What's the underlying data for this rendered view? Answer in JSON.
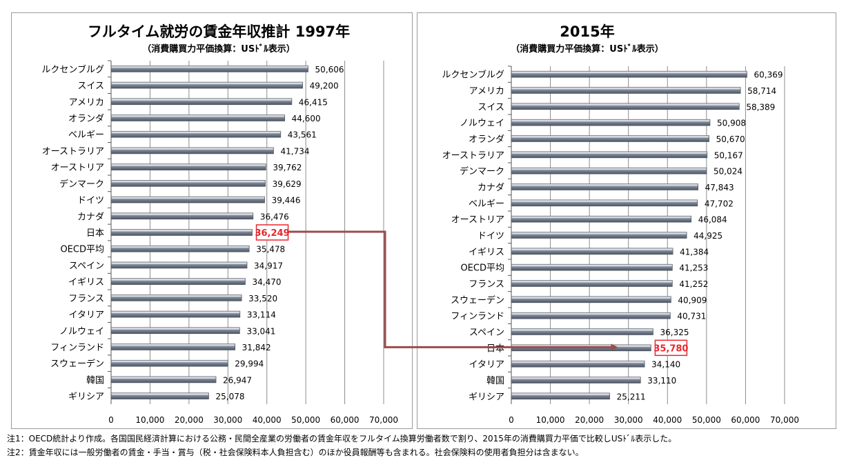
{
  "chart_data": [
    {
      "type": "bar",
      "orientation": "horizontal",
      "title": "フルタイム就労の賃金年収推計 1997年",
      "subtitle": "（消費購買力平価換算：USﾄﾞﾙ表示）",
      "categories": [
        "ルクセンブルグ",
        "スイス",
        "アメリカ",
        "オランダ",
        "ベルギー",
        "オーストラリア",
        "オーストリア",
        "デンマーク",
        "ドイツ",
        "カナダ",
        "日本",
        "OECD平均",
        "スペイン",
        "イギリス",
        "フランス",
        "イタリア",
        "ノルウェイ",
        "フィンランド",
        "スウェーデン",
        "韓国",
        "ギリシア"
      ],
      "values": [
        50606,
        49200,
        46415,
        44600,
        43561,
        41734,
        39762,
        39629,
        39446,
        36476,
        36249,
        35478,
        34917,
        34470,
        33520,
        33114,
        33041,
        31842,
        29994,
        26947,
        25078
      ],
      "value_labels": [
        "50,606",
        "49,200",
        "46,415",
        "44,600",
        "43,561",
        "41,734",
        "39,762",
        "39,629",
        "39,446",
        "36,476",
        "36,249",
        "35,478",
        "34,917",
        "34,470",
        "33,520",
        "33,114",
        "33,041",
        "31,842",
        "29,994",
        "26,947",
        "25,078"
      ],
      "highlight": "日本",
      "xlim": [
        0,
        70000
      ],
      "xticks": [
        "0",
        "10,000",
        "20,000",
        "30,000",
        "40,000",
        "50,000",
        "60,000",
        "70,000"
      ],
      "grid": true
    },
    {
      "type": "bar",
      "orientation": "horizontal",
      "title": "2015年",
      "subtitle": "（消費購買力平価換算：USﾄﾞﾙ表示）",
      "categories": [
        "ルクセンブルグ",
        "アメリカ",
        "スイス",
        "ノルウェイ",
        "オランダ",
        "オーストラリア",
        "デンマーク",
        "カナダ",
        "ベルギー",
        "オーストリア",
        "ドイツ",
        "イギリス",
        "OECD平均",
        "フランス",
        "スウェーデン",
        "フィンランド",
        "スペイン",
        "日本",
        "イタリア",
        "韓国",
        "ギリシア"
      ],
      "values": [
        60369,
        58714,
        58389,
        50908,
        50670,
        50167,
        50024,
        47843,
        47702,
        46084,
        44925,
        41384,
        41253,
        41252,
        40909,
        40731,
        36325,
        35780,
        34140,
        33110,
        25211
      ],
      "value_labels": [
        "60,369",
        "58,714",
        "58,389",
        "50,908",
        "50,670",
        "50,167",
        "50,024",
        "47,843",
        "47,702",
        "46,084",
        "44,925",
        "41,384",
        "41,253",
        "41,252",
        "40,909",
        "40,731",
        "36,325",
        "35,780",
        "34,140",
        "33,110",
        "25,211"
      ],
      "highlight": "日本",
      "xlim": [
        0,
        70000
      ],
      "xticks": [
        "0",
        "10,000",
        "20,000",
        "30,000",
        "40,000",
        "50,000",
        "60,000",
        "70,000"
      ],
      "grid": true
    }
  ],
  "colors": {
    "bar": "#7d8796",
    "bar_light": "#d2d7df",
    "grid": "#8c8c8c",
    "highlight": "#e8262c",
    "arrow": "#9a4c4c"
  },
  "notes": [
    "注1：OECD統計より作成。各国国民経済計算における公務・民間全産業の労働者の賃金年収をフルタイム換算労働者数で割り、2015年の消費購買力平価で比較しUSﾄﾞﾙ表示した。",
    "注2：賃金年収には一般労働者の賃金・手当・賞与（税・社会保険料本人負担含む）のほか役員報酬等も含まれる。社会保険料の使用者負担分は含まない。"
  ]
}
